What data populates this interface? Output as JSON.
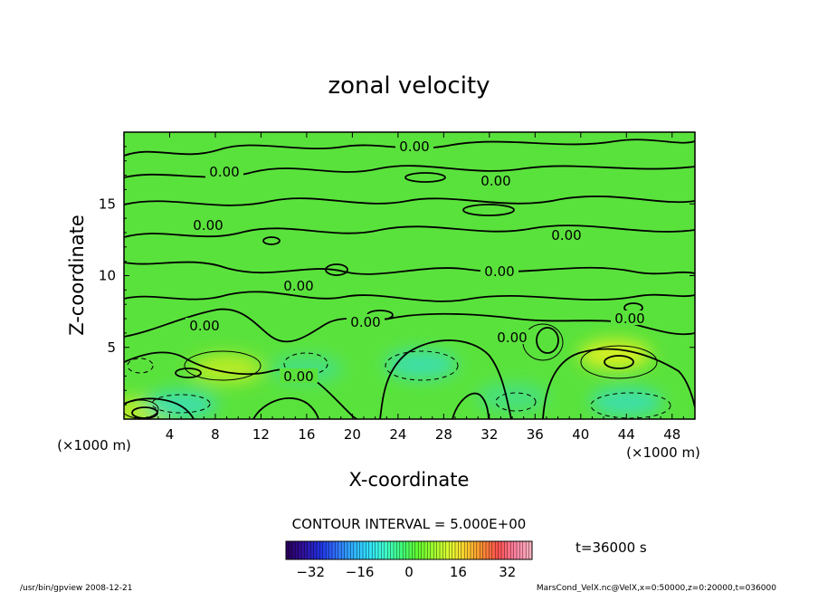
{
  "chart_data": {
    "type": "heatmap",
    "title": "zonal velocity",
    "xlabel": "X-coordinate",
    "ylabel": "Z-coordinate",
    "x_unit_left": "(×1000 m)",
    "x_unit_right": "(×1000 m)",
    "xlim": [
      0,
      50
    ],
    "ylim": [
      0,
      20
    ],
    "xticks": [
      4,
      8,
      12,
      16,
      20,
      24,
      28,
      32,
      36,
      40,
      44,
      48
    ],
    "yticks": [
      5,
      10,
      15
    ],
    "contour_interval_text": "CONTOUR INTERVAL = 5.000E+00",
    "time_text": "t=36000 s",
    "contour_labels": [
      "0.00",
      "0.00",
      "0.00",
      "0.00",
      "0.00",
      "0.00",
      "0.00",
      "0.00",
      "0.00",
      "0.00",
      "0.00"
    ],
    "colorbar": {
      "range": [
        -40,
        40
      ],
      "ticks": [
        -32,
        -16,
        0,
        16,
        32
      ],
      "colors": [
        "#2a0060",
        "#3010a0",
        "#2030e0",
        "#3070ff",
        "#30b0ff",
        "#30e0ff",
        "#40ffd0",
        "#40ff80",
        "#60ff30",
        "#a0ff30",
        "#e0ff30",
        "#ffd030",
        "#ff9030",
        "#ff5050",
        "#ff80a0",
        "#ffb0c0"
      ]
    },
    "warm_spots": [
      {
        "x": 9,
        "z": 3.5,
        "value": 5
      },
      {
        "x": 43,
        "z": 4.5,
        "value": 8
      },
      {
        "x": 1.5,
        "z": 0.5,
        "value": 5
      }
    ],
    "cool_spots": [
      {
        "x": 26,
        "z": 3.8,
        "value": -5
      },
      {
        "x": 44,
        "z": 1.2,
        "value": -6
      },
      {
        "x": 5,
        "z": 1.0,
        "value": -5
      },
      {
        "x": 16,
        "z": 3.5,
        "value": -4
      },
      {
        "x": 34,
        "z": 1.5,
        "value": -3
      }
    ]
  },
  "footer": {
    "left": "/usr/bin/gpview   2008-12-21",
    "right": "MarsCond_VelX.nc@VelX,x=0:50000,z=0:20000,t=036000"
  }
}
